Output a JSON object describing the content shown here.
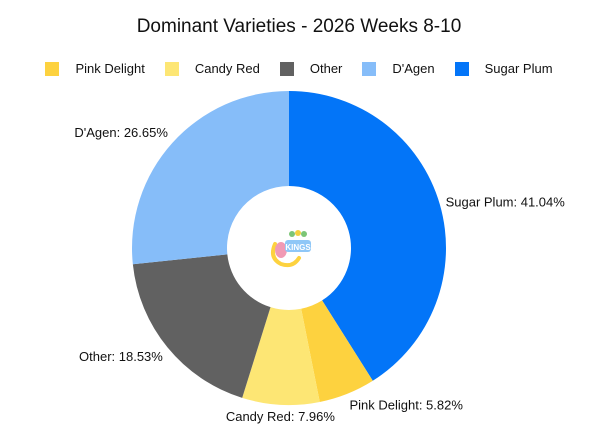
{
  "chart_data": {
    "type": "pie",
    "title": "Dominant Varieties - 2026 Weeks 8-10",
    "hole": true,
    "legend_position": "top",
    "series": [
      {
        "name": "Pink Delight",
        "value": 5.82,
        "label": "Pink Delight: 5.82%",
        "color": "#FDD23F"
      },
      {
        "name": "Candy Red",
        "value": 7.96,
        "label": "Candy Red: 7.96%",
        "color": "#FDE674"
      },
      {
        "name": "Other",
        "value": 18.53,
        "label": "Other: 18.53%",
        "color": "#616161"
      },
      {
        "name": "D'Agen",
        "value": 26.65,
        "label": "D'Agen: 26.65%",
        "color": "#86BDF9"
      },
      {
        "name": "Sugar Plum",
        "value": 41.04,
        "label": "Sugar Plum: 41.04%",
        "color": "#0375F8"
      }
    ],
    "slice_order": [
      "Sugar Plum",
      "Pink Delight",
      "Candy Red",
      "Other",
      "D'Agen"
    ]
  },
  "center_logo": {
    "icon": "fruit-logo-icon",
    "text": "KINGS"
  }
}
